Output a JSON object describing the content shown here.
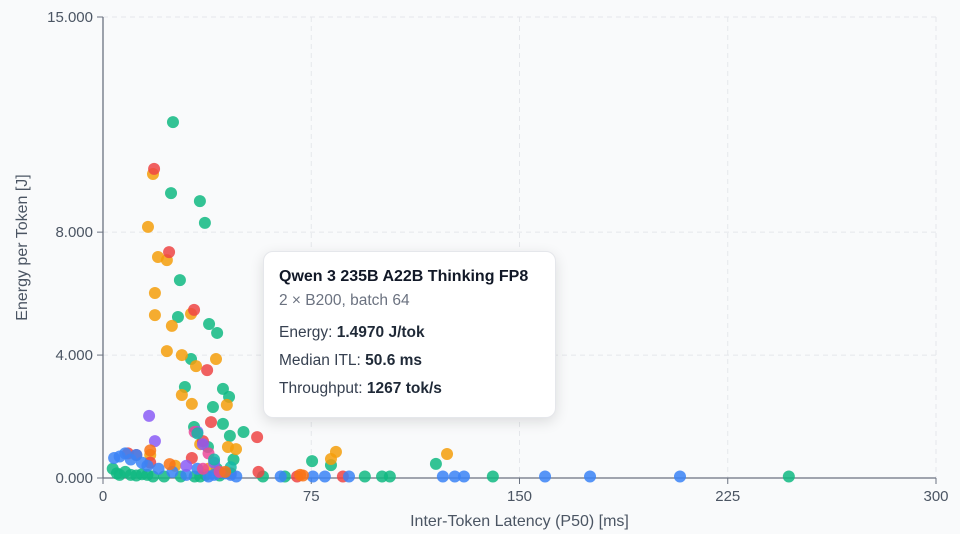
{
  "chart_data": {
    "type": "scatter",
    "xlabel": "Inter-Token Latency (P50) [ms]",
    "ylabel": "Energy per Token [J]",
    "xlim": [
      0,
      300
    ],
    "ylim": [
      0,
      15
    ],
    "xticks": [
      "0",
      "75",
      "150",
      "225",
      "300"
    ],
    "xtick_values": [
      0,
      75,
      150,
      225,
      300
    ],
    "yticks": [
      "0.000",
      "4.000",
      "8.000",
      "15.000"
    ],
    "ytick_values": [
      0,
      4,
      8,
      15
    ],
    "grid": true,
    "series": [
      {
        "color": "#10b981",
        "points": [
          [
            25.2,
            11.58
          ],
          [
            24.5,
            9.27
          ],
          [
            34.9,
            9.01
          ],
          [
            36.7,
            8.3
          ],
          [
            27.7,
            6.44
          ],
          [
            27.0,
            5.24
          ],
          [
            38.2,
            5.01
          ],
          [
            41.1,
            4.72
          ],
          [
            31.7,
            3.87
          ],
          [
            29.5,
            2.96
          ],
          [
            43.2,
            2.9
          ],
          [
            45.4,
            2.64
          ],
          [
            39.6,
            2.31
          ],
          [
            32.8,
            1.66
          ],
          [
            43.2,
            1.76
          ],
          [
            50.6,
            1.497
          ],
          [
            45.7,
            1.37
          ],
          [
            37.8,
            1.01
          ],
          [
            75.3,
            0.55
          ],
          [
            82.1,
            0.42
          ],
          [
            119.9,
            0.46
          ],
          [
            57.6,
            0.05
          ],
          [
            65.5,
            0.05
          ],
          [
            94.3,
            0.05
          ],
          [
            100.5,
            0.05
          ],
          [
            103.3,
            0.05
          ],
          [
            140.4,
            0.05
          ],
          [
            247.0,
            0.05
          ],
          [
            3.5,
            0.3
          ],
          [
            5,
            0.15
          ],
          [
            6,
            0.1
          ],
          [
            8,
            0.2
          ],
          [
            10,
            0.1
          ],
          [
            12,
            0.08
          ],
          [
            14,
            0.12
          ],
          [
            16,
            0.1
          ],
          [
            18,
            0.05
          ],
          [
            22,
            0.05
          ],
          [
            28,
            0.05
          ],
          [
            35,
            0.05
          ],
          [
            37,
            0.1
          ],
          [
            42,
            0.08
          ],
          [
            47,
            0.6
          ],
          [
            41,
            0.3
          ],
          [
            33,
            0.05
          ]
        ]
      },
      {
        "color": "#f59e0b",
        "points": [
          [
            18.0,
            9.89
          ],
          [
            16.2,
            8.17
          ],
          [
            19.8,
            7.19
          ],
          [
            23.0,
            7.09
          ],
          [
            18.7,
            6.02
          ],
          [
            18.7,
            5.3
          ],
          [
            31.7,
            5.34
          ],
          [
            24.8,
            4.95
          ],
          [
            23.0,
            4.13
          ],
          [
            28.4,
            4.0
          ],
          [
            33.5,
            3.64
          ],
          [
            40.7,
            3.87
          ],
          [
            28.4,
            2.7
          ],
          [
            32.0,
            2.41
          ],
          [
            44.6,
            2.38
          ],
          [
            45.0,
            1.01
          ],
          [
            47.9,
            0.94
          ],
          [
            83.9,
            0.85
          ],
          [
            82.1,
            0.62
          ],
          [
            123.9,
            0.78
          ],
          [
            17,
            0.75
          ],
          [
            35,
            1.1
          ],
          [
            26,
            0.4
          ],
          [
            38,
            0.3
          ]
        ]
      },
      {
        "color": "#ef4444",
        "points": [
          [
            18.4,
            10.06
          ],
          [
            23.8,
            7.35
          ],
          [
            32.8,
            5.47
          ],
          [
            37.5,
            3.51
          ],
          [
            38.9,
            1.82
          ],
          [
            55.5,
            1.33
          ],
          [
            69.9,
            0.05
          ],
          [
            86.4,
            0.05
          ],
          [
            9,
            0.8
          ],
          [
            12,
            0.75
          ],
          [
            17,
            0.5
          ],
          [
            36,
            1.2
          ],
          [
            32,
            0.65
          ],
          [
            56,
            0.2
          ],
          [
            46,
            0.15
          ]
        ]
      },
      {
        "color": "#3b82f6",
        "points": [
          [
            75.6,
            0.05
          ],
          [
            79.9,
            0.05
          ],
          [
            88.6,
            0.05
          ],
          [
            122.4,
            0.05
          ],
          [
            126.7,
            0.05
          ],
          [
            130.0,
            0.05
          ],
          [
            159.2,
            0.05
          ],
          [
            175.4,
            0.05
          ],
          [
            207.8,
            0.05
          ],
          [
            4,
            0.65
          ],
          [
            6,
            0.7
          ],
          [
            8,
            0.8
          ],
          [
            10,
            0.6
          ],
          [
            12,
            0.75
          ],
          [
            14,
            0.5
          ],
          [
            16,
            0.4
          ],
          [
            20,
            0.3
          ],
          [
            25,
            0.2
          ],
          [
            30,
            0.1
          ],
          [
            34,
            0.3
          ],
          [
            38,
            0.05
          ],
          [
            40,
            0.1
          ],
          [
            44,
            0.15
          ],
          [
            46,
            0.1
          ],
          [
            48,
            0.05
          ],
          [
            64,
            0.05
          ]
        ]
      },
      {
        "color": "#8b5cf6",
        "points": [
          [
            16.6,
            2.02
          ],
          [
            18.7,
            1.2
          ],
          [
            36,
            1.1
          ],
          [
            34,
            1.5
          ],
          [
            40,
            0.5
          ],
          [
            30,
            0.4
          ]
        ]
      },
      {
        "color": "#ec4899",
        "points": [
          [
            33,
            1.5
          ],
          [
            38,
            0.8
          ],
          [
            36,
            0.3
          ],
          [
            42,
            0.2
          ]
        ]
      },
      {
        "color": "#14b8a6",
        "points": [
          [
            34,
            1.45
          ],
          [
            40,
            0.6
          ],
          [
            46,
            0.35
          ]
        ]
      },
      {
        "color": "#f97316",
        "points": [
          [
            17,
            0.9
          ],
          [
            24,
            0.45
          ],
          [
            71,
            0.1
          ],
          [
            72,
            0.08
          ],
          [
            44,
            0.2
          ]
        ]
      }
    ]
  },
  "tooltip": {
    "title": "Qwen 3 235B A22B Thinking FP8",
    "subtitle": "2 × B200, batch 64",
    "energy_label": "Energy:",
    "energy_value": "1.4970 J/tok",
    "itl_label": "Median ITL:",
    "itl_value": "50.6 ms",
    "throughput_label": "Throughput:",
    "throughput_value": "1267 tok/s"
  }
}
